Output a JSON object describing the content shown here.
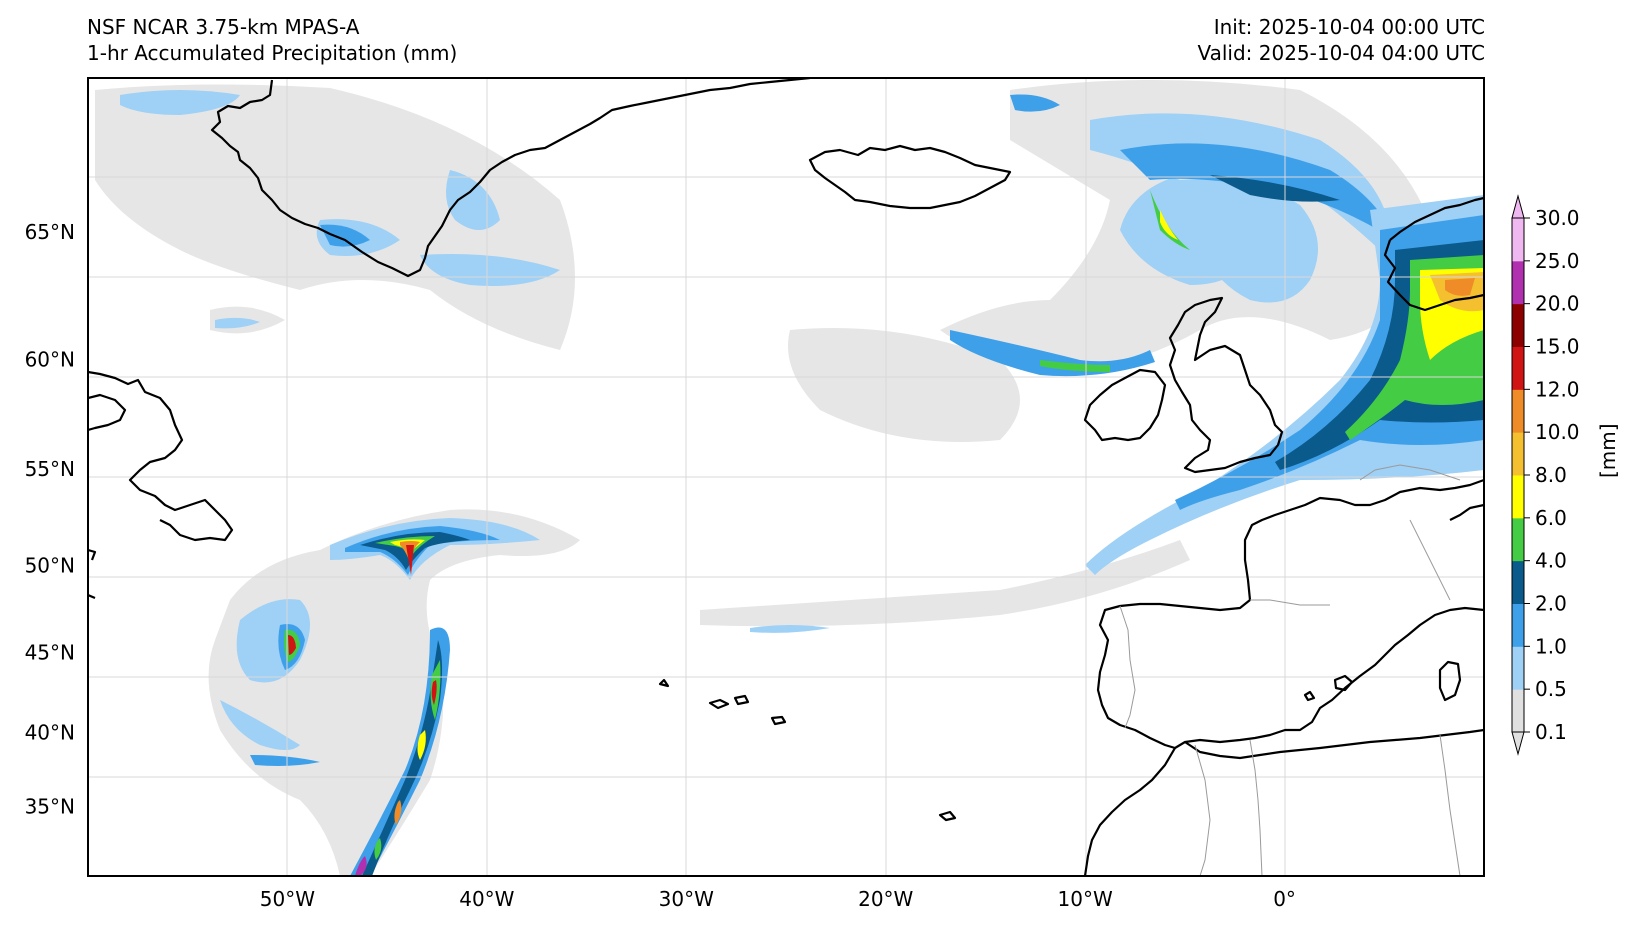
{
  "header": {
    "model": "NSF NCAR 3.75-km MPAS-A",
    "field": "1-hr Accumulated Precipitation (mm)",
    "init": "Init: 2025-10-04 00:00 UTC",
    "valid": "Valid: 2025-10-04 04:00 UTC"
  },
  "map": {
    "projection": "Mercator",
    "lon_range": [
      -60,
      10
    ],
    "lat_range": [
      30,
      70
    ],
    "gridlines": true,
    "lat_labels": [
      "65°N",
      "60°N",
      "55°N",
      "50°N",
      "45°N",
      "40°N",
      "35°N"
    ],
    "lon_labels": [
      "50°W",
      "40°W",
      "30°W",
      "20°W",
      "10°W",
      "0°"
    ],
    "lat_values": [
      65,
      60,
      55,
      50,
      45,
      40,
      35
    ],
    "lon_values": [
      -50,
      -40,
      -30,
      -20,
      -10,
      0
    ]
  },
  "colorbar": {
    "unit": "[mm]",
    "levels": [
      "0.1",
      "0.5",
      "1.0",
      "2.0",
      "4.0",
      "6.0",
      "8.0",
      "10.0",
      "12.0",
      "15.0",
      "20.0",
      "25.0",
      "30.0"
    ],
    "colors": [
      "#e0e0e0",
      "#9fd0f5",
      "#3fa0ea",
      "#0a5a8c",
      "#44cc44",
      "#ffff00",
      "#f5c030",
      "#f08c28",
      "#d01414",
      "#8c0000",
      "#b030b0",
      "#f0b8f0"
    ]
  }
}
